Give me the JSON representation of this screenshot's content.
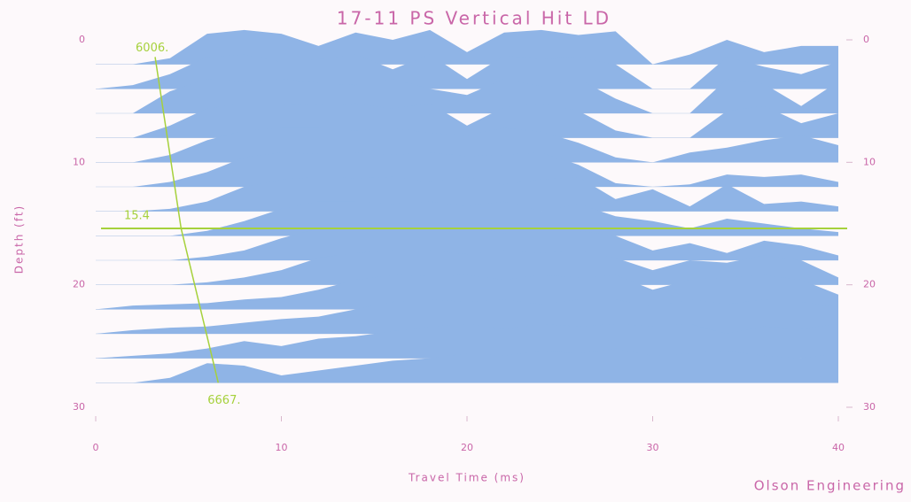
{
  "chart_data": {
    "type": "wiggle",
    "title": "17-11 PS Vertical Hit LD",
    "x_label": "Travel Time (ms)",
    "y_label": "Depth (ft)",
    "credit": "Olson Engineering",
    "xlim": [
      0,
      40
    ],
    "ylim": [
      0,
      30
    ],
    "xticks": [
      0,
      10,
      20,
      30,
      40
    ],
    "yticks": [
      0,
      10,
      20,
      30
    ],
    "fill_color": "#8fb4e6",
    "line_color": "#a6d13c",
    "text_color": "#c966a8",
    "x": [
      0,
      2,
      4,
      6,
      8,
      10,
      12,
      14,
      16,
      18,
      20,
      22,
      24,
      26,
      28,
      30,
      32,
      34,
      36,
      38,
      40
    ],
    "traces": [
      {
        "depth": 2,
        "values": [
          0,
          0,
          0.5,
          2.5,
          2.8,
          2.5,
          1.5,
          2.6,
          2.0,
          2.8,
          1.0,
          2.6,
          2.8,
          2.4,
          2.7,
          0,
          0.8,
          2.0,
          1.0,
          1.5,
          1.5
        ]
      },
      {
        "depth": 4,
        "values": [
          0,
          0.3,
          1.2,
          2.6,
          2.8,
          2.2,
          2.4,
          2.8,
          1.6,
          2.8,
          0.8,
          2.7,
          2.4,
          2.6,
          2.0,
          0,
          0,
          2.6,
          1.8,
          1.2,
          2.2
        ]
      },
      {
        "depth": 6,
        "values": [
          0,
          0,
          1.8,
          2.8,
          2.6,
          2.8,
          2.5,
          2.3,
          2.8,
          2.0,
          1.5,
          2.8,
          2.2,
          2.8,
          1.2,
          0,
          0,
          2.8,
          2.4,
          0.6,
          2.6
        ]
      },
      {
        "depth": 8,
        "values": [
          0,
          0,
          1.0,
          2.4,
          2.8,
          2.8,
          2.7,
          2.8,
          2.4,
          2.8,
          1.0,
          2.5,
          2.8,
          2.2,
          0.6,
          0,
          0,
          2.2,
          2.6,
          1.2,
          2.0
        ]
      },
      {
        "depth": 10,
        "values": [
          0,
          0,
          0.6,
          1.8,
          2.6,
          2.8,
          2.8,
          2.6,
          2.8,
          2.4,
          2.2,
          2.8,
          2.5,
          1.6,
          0.4,
          0,
          0.8,
          1.2,
          1.8,
          2.2,
          1.4
        ]
      },
      {
        "depth": 12,
        "values": [
          0,
          0,
          0.4,
          1.2,
          2.4,
          2.8,
          2.7,
          2.8,
          2.6,
          2.8,
          2.5,
          2.6,
          2.8,
          1.8,
          0.3,
          0,
          0.2,
          1.0,
          0.8,
          1.0,
          0.4
        ]
      },
      {
        "depth": 14,
        "values": [
          0,
          0,
          0.2,
          0.8,
          2.0,
          2.6,
          2.8,
          2.7,
          2.8,
          2.4,
          2.8,
          2.2,
          2.6,
          2.8,
          1.0,
          1.8,
          0.4,
          2.2,
          0.6,
          0.8,
          0.4
        ]
      },
      {
        "depth": 16,
        "values": [
          0,
          0,
          0,
          0.4,
          1.2,
          2.2,
          2.8,
          2.8,
          2.6,
          2.8,
          2.4,
          2.8,
          2.0,
          2.6,
          1.6,
          1.2,
          0.6,
          1.4,
          1.0,
          0.6,
          0.3
        ]
      },
      {
        "depth": 18,
        "values": [
          0,
          0,
          0,
          0.3,
          0.8,
          1.8,
          2.6,
          2.8,
          2.8,
          2.6,
          2.8,
          2.2,
          2.8,
          2.4,
          2.0,
          0.8,
          1.4,
          0.6,
          1.6,
          1.2,
          0.4
        ]
      },
      {
        "depth": 20,
        "values": [
          0,
          0,
          0,
          0.2,
          0.6,
          1.2,
          2.2,
          2.6,
          2.8,
          2.8,
          2.5,
          2.8,
          2.6,
          2.8,
          2.2,
          1.2,
          2.0,
          1.8,
          2.4,
          2.0,
          0.6
        ]
      },
      {
        "depth": 22,
        "values": [
          0,
          0.3,
          0.4,
          0.5,
          0.8,
          1.0,
          1.6,
          2.4,
          2.8,
          2.7,
          2.8,
          2.4,
          2.8,
          2.6,
          2.8,
          1.6,
          2.4,
          2.6,
          2.8,
          2.4,
          1.2
        ]
      },
      {
        "depth": 24,
        "values": [
          0,
          0.3,
          0.5,
          0.6,
          0.9,
          1.2,
          1.4,
          2.0,
          2.6,
          2.8,
          2.6,
          2.8,
          2.4,
          2.8,
          2.8,
          2.2,
          2.8,
          2.4,
          2.8,
          2.6,
          2.2
        ]
      },
      {
        "depth": 26,
        "values": [
          0,
          0.2,
          0.4,
          0.8,
          1.4,
          1.0,
          1.6,
          1.8,
          2.2,
          2.6,
          2.8,
          2.4,
          2.8,
          2.6,
          2.8,
          2.6,
          2.8,
          2.0,
          2.6,
          2.4,
          2.8
        ]
      },
      {
        "depth": 28,
        "values": [
          0,
          0,
          0.4,
          1.6,
          1.4,
          0.6,
          1.0,
          1.4,
          1.8,
          2.0,
          2.4,
          2.2,
          2.6,
          2.4,
          2.8,
          2.2,
          2.4,
          2.6,
          2.2,
          2.0,
          2.4
        ]
      }
    ],
    "velocity_lines": [
      {
        "label": "6006.",
        "x": [
          3.2,
          4.6
        ],
        "y": [
          1.4,
          15.4
        ]
      },
      {
        "label": "6667.",
        "x": [
          4.6,
          6.6
        ],
        "y": [
          15.4,
          28
        ]
      }
    ],
    "depth_line": 15.4
  }
}
